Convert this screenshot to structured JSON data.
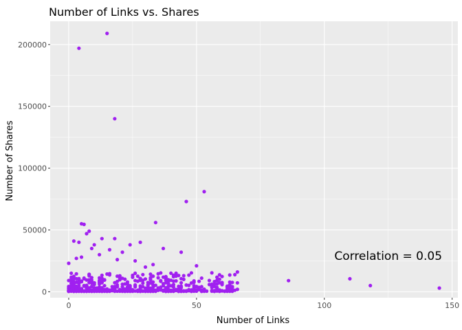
{
  "chart_data": {
    "type": "scatter",
    "title": "Number of Links vs. Shares",
    "xlabel": "Number of Links",
    "ylabel": "Number of Shares",
    "xlim": [
      -7.25,
      152.25
    ],
    "ylim": [
      -4800,
      218800
    ],
    "x_ticks": [
      0,
      50,
      100,
      150
    ],
    "x_tick_labels": [
      "0",
      "50",
      "100",
      "150"
    ],
    "y_ticks": [
      0,
      50000,
      100000,
      150000,
      200000
    ],
    "y_tick_labels": [
      "0",
      "50000",
      "100000",
      "150000",
      "200000"
    ],
    "grid": true,
    "panel_background": "#EBEBEB",
    "grid_color": "#FFFFFF",
    "point_color": "#A020F0",
    "annotation": {
      "text": "Correlation = 0.05",
      "x": 125,
      "y": 29000
    },
    "points": [
      [
        15,
        209000
      ],
      [
        4,
        197000
      ],
      [
        18,
        140000
      ],
      [
        53,
        81000
      ],
      [
        46,
        73000
      ],
      [
        34,
        56000
      ],
      [
        5,
        55000
      ],
      [
        6,
        54500
      ],
      [
        28,
        40000
      ],
      [
        13,
        43000
      ],
      [
        2,
        41000
      ],
      [
        4,
        40000
      ],
      [
        7,
        47000
      ],
      [
        8,
        49000
      ],
      [
        18,
        43000
      ],
      [
        37,
        35000
      ],
      [
        44,
        32000
      ],
      [
        10,
        38000
      ],
      [
        24,
        38000
      ],
      [
        16,
        34000
      ],
      [
        3,
        27000
      ],
      [
        5,
        28000
      ],
      [
        0,
        23000
      ],
      [
        50,
        21000
      ],
      [
        66,
        16000
      ],
      [
        86,
        9000
      ],
      [
        110,
        10500
      ],
      [
        118,
        5000
      ],
      [
        145,
        3000
      ],
      [
        64,
        3500
      ],
      [
        62,
        4500
      ],
      [
        58,
        2500
      ],
      [
        52,
        11000
      ],
      [
        45,
        13000
      ],
      [
        40,
        15000
      ],
      [
        21,
        32000
      ],
      [
        12,
        30000
      ],
      [
        9,
        35000
      ],
      [
        26,
        25000
      ],
      [
        30,
        20000
      ],
      [
        33,
        22000
      ],
      [
        19,
        26000
      ]
    ],
    "dense_cluster": {
      "x_range": [
        0,
        66
      ],
      "y_range": [
        0,
        15000
      ],
      "note_points": 520
    }
  }
}
